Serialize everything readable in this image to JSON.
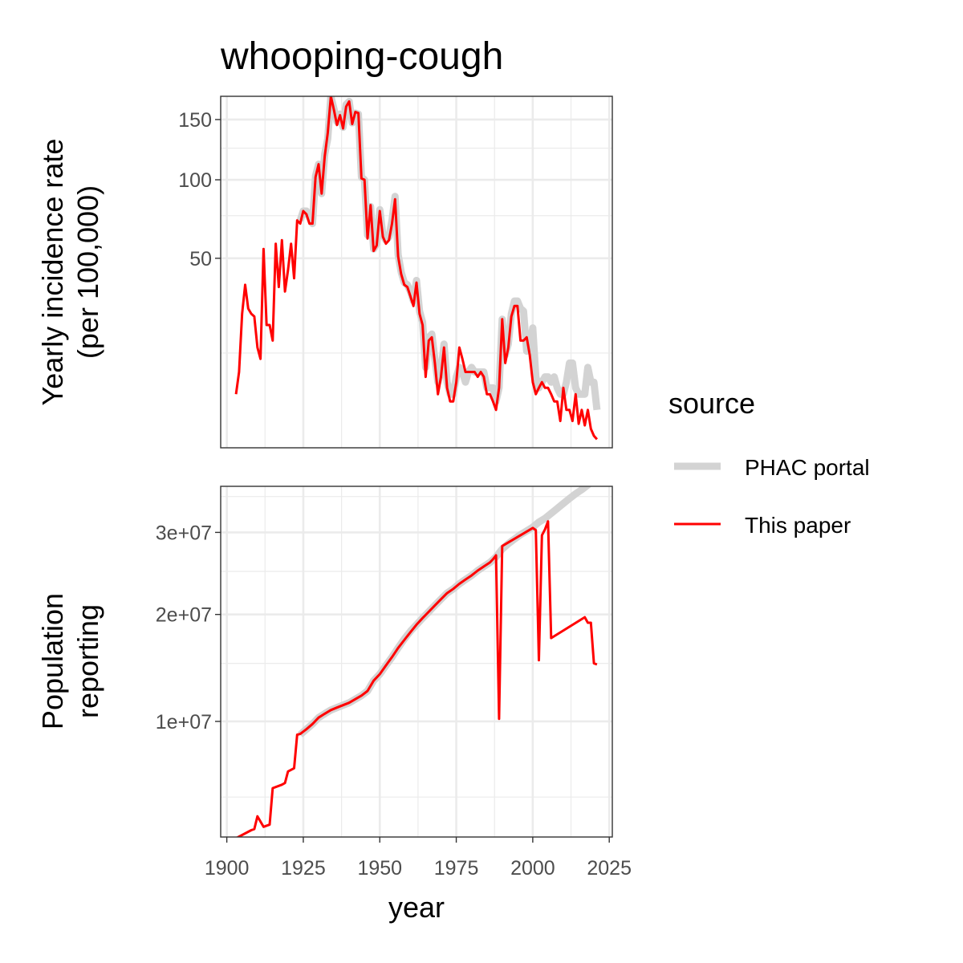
{
  "chart_data": {
    "type": "line",
    "title": "whooping-cough",
    "xlabel": "year",
    "x_ticks": [
      1900,
      1925,
      1950,
      1975,
      2000,
      2025
    ],
    "x_tick_labels": [
      "1900",
      "1925",
      "1950",
      "1975",
      "2000",
      "2025"
    ],
    "xlim": [
      1898,
      2026
    ],
    "legend": {
      "title": "source",
      "position": "right",
      "entries": [
        {
          "label": "PHAC portal",
          "color": "#d3d3d3"
        },
        {
          "label": "This paper",
          "color": "#ff0000"
        }
      ]
    },
    "panels": [
      {
        "id": "incidence",
        "ylabel_lines": [
          "Yearly incidence rate",
          "(per 100,000)"
        ],
        "scale": "sqrt",
        "ylim": [
          0,
          172
        ],
        "y_ticks": [
          50,
          100,
          150
        ],
        "y_tick_labels": [
          "50",
          "100",
          "150"
        ],
        "y_minor": [
          12.5,
          75,
          125
        ],
        "series": [
          {
            "name": "PHAC portal",
            "x": [
              1924,
              1925,
              1926,
              1927,
              1928,
              1929,
              1930,
              1931,
              1932,
              1933,
              1934,
              1935,
              1936,
              1937,
              1938,
              1939,
              1940,
              1941,
              1942,
              1943,
              1944,
              1945,
              1946,
              1947,
              1948,
              1949,
              1950,
              1951,
              1952,
              1953,
              1954,
              1955,
              1956,
              1957,
              1958,
              1959,
              1960,
              1961,
              1962,
              1963,
              1964,
              1965,
              1966,
              1967,
              1968,
              1969,
              1970,
              1971,
              1972,
              1973,
              1974,
              1975,
              1976,
              1977,
              1978,
              1979,
              1980,
              1981,
              1982,
              1983,
              1984,
              1985,
              1986,
              1987,
              1988,
              1989,
              1990,
              1991,
              1992,
              1993,
              1994,
              1995,
              1996,
              1997,
              1998,
              1999,
              2000,
              2001,
              2002,
              2003,
              2004,
              2005,
              2006,
              2007,
              2008,
              2009,
              2010,
              2011,
              2012,
              2013,
              2014,
              2015,
              2016,
              2017,
              2018,
              2019,
              2020,
              2021
            ],
            "y": [
              72,
              78,
              78,
              74,
              70,
              103,
              112,
              90,
              120,
              133,
              172,
              160,
              148,
              155,
              143,
              164,
              167,
              147,
              156,
              155,
              102,
              100,
              63,
              81,
              55,
              58,
              79,
              63,
              60,
              62,
              72,
              88,
              52,
              43,
              38,
              37,
              34,
              30,
              39,
              26,
              22,
              9,
              17,
              18,
              11,
              6,
              8,
              15,
              6,
              4,
              4,
              7,
              9,
              8,
              6,
              8,
              9,
              8,
              8,
              8,
              8,
              5,
              5,
              5,
              3,
              5,
              23,
              12,
              15,
              25,
              30,
              30,
              27,
              26,
              13,
              14,
              20,
              7,
              5,
              6,
              7,
              7,
              6,
              7,
              5,
              4,
              4,
              6,
              10,
              10,
              5,
              4,
              4,
              4,
              9,
              6,
              6,
              2
            ]
          },
          {
            "name": "This paper",
            "x": [
              1903,
              1904,
              1905,
              1906,
              1907,
              1908,
              1909,
              1910,
              1911,
              1912,
              1913,
              1914,
              1915,
              1916,
              1917,
              1918,
              1919,
              1920,
              1921,
              1922,
              1923,
              1924,
              1925,
              1926,
              1927,
              1928,
              1929,
              1930,
              1931,
              1932,
              1933,
              1934,
              1935,
              1936,
              1937,
              1938,
              1939,
              1940,
              1941,
              1942,
              1943,
              1944,
              1945,
              1946,
              1947,
              1948,
              1949,
              1950,
              1951,
              1952,
              1953,
              1954,
              1955,
              1956,
              1957,
              1958,
              1959,
              1960,
              1961,
              1962,
              1963,
              1964,
              1965,
              1966,
              1967,
              1968,
              1969,
              1970,
              1971,
              1972,
              1973,
              1974,
              1975,
              1976,
              1977,
              1978,
              1979,
              1980,
              1981,
              1982,
              1983,
              1984,
              1985,
              1986,
              1987,
              1988,
              1989,
              1990,
              1991,
              1992,
              1993,
              1994,
              1995,
              1996,
              1997,
              1998,
              1999,
              2000,
              2001,
              2002,
              2003,
              2004,
              2005,
              2006,
              2007,
              2008,
              2009,
              2010,
              2011,
              2012,
              2013,
              2014,
              2015,
              2016,
              2017,
              2018,
              2019,
              2020,
              2021
            ],
            "y": [
              4,
              8,
              25,
              37,
              27,
              25,
              24,
              14,
              11,
              55,
              21,
              21,
              16,
              58,
              36,
              60,
              34,
              44,
              58,
              40,
              72,
              70,
              78,
              76,
              70,
              70,
              102,
              112,
              90,
              118,
              138,
              172,
              159,
              145,
              154,
              142,
              162,
              167,
              146,
              157,
              156,
              101,
              100,
              61,
              82,
              54,
              57,
              78,
              62,
              58,
              60,
              70,
              86,
              51,
              42,
              37,
              36,
              32,
              28,
              38,
              25,
              21,
              7,
              16,
              17,
              10,
              4,
              7,
              14,
              5,
              3,
              3,
              6,
              14,
              11,
              8,
              8,
              8,
              8,
              7,
              8,
              7,
              4,
              4,
              3,
              2,
              5,
              23,
              10,
              14,
              24,
              28,
              28,
              16,
              16,
              17,
              12,
              6,
              4,
              5,
              6,
              5,
              5,
              4,
              3,
              3,
              1,
              5,
              2,
              2,
              1,
              4,
              0.8,
              2,
              0.7,
              2,
              0.5,
              0.2,
              0.1
            ]
          }
        ]
      },
      {
        "id": "population",
        "ylabel_lines": [
          "Population",
          "reporting"
        ],
        "scale": "sqrt",
        "ylim": [
          3050000,
          36500000
        ],
        "y_ticks": [
          10000000,
          20000000,
          30000000
        ],
        "y_tick_labels": [
          "1e+07",
          "2e+07",
          "3e+07"
        ],
        "y_minor": [
          5000000,
          15000000,
          25000000,
          35000000
        ],
        "series": [
          {
            "name": "PHAC portal",
            "x": [
              1924,
              1926,
              1928,
              1930,
              1932,
              1934,
              1936,
              1938,
              1940,
              1942,
              1944,
              1946,
              1948,
              1950,
              1952,
              1954,
              1956,
              1958,
              1960,
              1962,
              1964,
              1966,
              1968,
              1970,
              1972,
              1974,
              1976,
              1978,
              1980,
              1982,
              1984,
              1986,
              1988,
              1990,
              1992,
              1994,
              1996,
              1998,
              2000,
              2002,
              2004,
              2006,
              2008,
              2010,
              2012,
              2014,
              2016,
              2018,
              2020,
              2021
            ],
            "y": [
              9000000,
              9400000,
              9800000,
              10300000,
              10600000,
              10900000,
              11100000,
              11300000,
              11500000,
              11800000,
              12100000,
              12500000,
              13400000,
              14000000,
              14800000,
              15600000,
              16500000,
              17400000,
              18200000,
              18900000,
              19600000,
              20300000,
              21000000,
              21700000,
              22400000,
              22900000,
              23500000,
              24000000,
              24500000,
              25100000,
              25600000,
              26100000,
              26800000,
              27800000,
              28500000,
              29100000,
              29700000,
              30200000,
              30700000,
              31400000,
              31900000,
              32600000,
              33300000,
              34000000,
              34700000,
              35400000,
              36000000,
              36700000,
              37500000,
              38000000
            ]
          },
          {
            "name": "This paper",
            "x": [
              1903,
              1908,
              1909,
              1910,
              1912,
              1914,
              1915,
              1918,
              1919,
              1920,
              1921,
              1922,
              1923,
              1924,
              1926,
              1928,
              1930,
              1932,
              1934,
              1936,
              1938,
              1940,
              1942,
              1944,
              1946,
              1948,
              1950,
              1952,
              1954,
              1956,
              1958,
              1960,
              1962,
              1964,
              1966,
              1968,
              1970,
              1972,
              1974,
              1976,
              1978,
              1980,
              1982,
              1984,
              1986,
              1987,
              1988,
              1989,
              1990,
              2000,
              2001,
              2002,
              2003,
              2004,
              2005,
              2006,
              2017,
              2018,
              2019,
              2020,
              2021
            ],
            "y": [
              3000000,
              3350000,
              3400000,
              4000000,
              3500000,
              3600000,
              5500000,
              5700000,
              5800000,
              6500000,
              6600000,
              6700000,
              9000000,
              9050000,
              9400000,
              9800000,
              10300000,
              10600000,
              10900000,
              11100000,
              11300000,
              11500000,
              11800000,
              12100000,
              12500000,
              13400000,
              14000000,
              14800000,
              15600000,
              16500000,
              17300000,
              18100000,
              18900000,
              19600000,
              20300000,
              21000000,
              21700000,
              22400000,
              22900000,
              23500000,
              24000000,
              24500000,
              25100000,
              25600000,
              26100000,
              26500000,
              27000000,
              10200000,
              28200000,
              30600000,
              30300000,
              15300000,
              29600000,
              30400000,
              31500000,
              17500000,
              19700000,
              19100000,
              19100000,
              15000000,
              14900000
            ]
          }
        ]
      }
    ]
  }
}
